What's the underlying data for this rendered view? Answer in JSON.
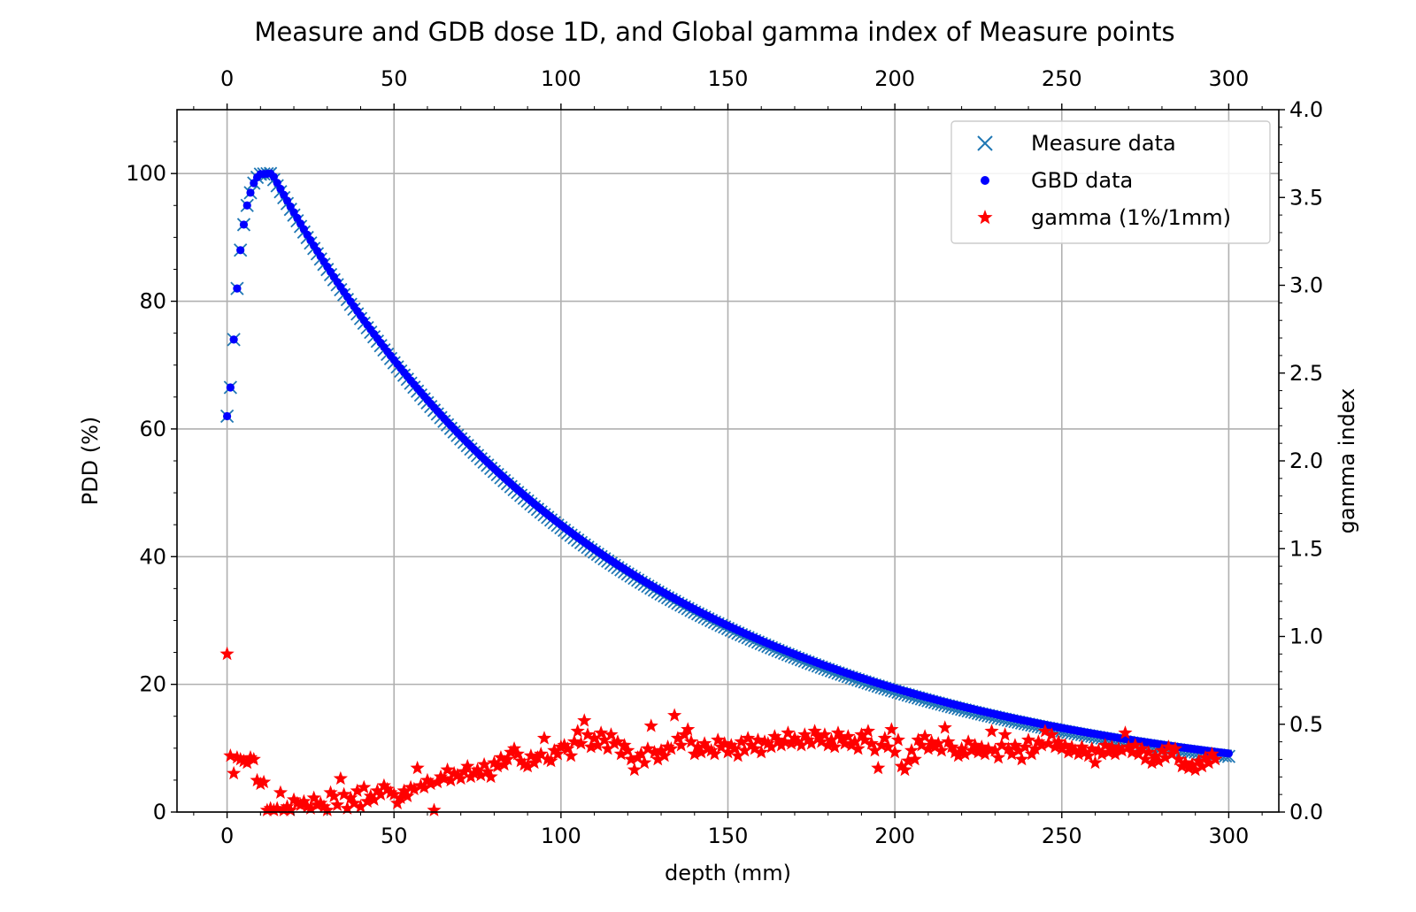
{
  "chart_data": {
    "type": "scatter",
    "title": "Measure and GDB dose 1D, and Global gamma index of Measure points",
    "xlabel": "depth (mm)",
    "ylabel": "PDD (%)",
    "y2label": "gamma index",
    "xlim": [
      -15,
      315
    ],
    "ylim": [
      0,
      110
    ],
    "y2lim": [
      0,
      4.0
    ],
    "xticks": [
      "0",
      "50",
      "100",
      "150",
      "200",
      "250",
      "300"
    ],
    "yticks": [
      "0",
      "20",
      "40",
      "60",
      "80",
      "100"
    ],
    "y2ticks": [
      "0.0",
      "0.5",
      "1.0",
      "1.5",
      "2.0",
      "2.5",
      "3.0",
      "3.5",
      "4.0"
    ],
    "grid": true,
    "legend_position": "top-right",
    "colors": {
      "measure": "#1f77b4",
      "gbd": "#0000ff",
      "gamma": "#ff0000"
    },
    "pdd_model": {
      "x_step": 1,
      "buildup": [
        [
          0,
          62
        ],
        [
          1,
          66.5
        ],
        [
          2,
          74
        ],
        [
          3,
          82
        ],
        [
          4,
          88
        ],
        [
          5,
          92
        ],
        [
          6,
          95
        ],
        [
          7,
          97
        ],
        [
          8,
          98.5
        ],
        [
          9,
          99.4
        ],
        [
          10,
          99.9
        ],
        [
          13,
          100
        ]
      ],
      "peak_depth": 13,
      "falloff_rate": 0.00965,
      "falloff_curvature": 4e-06,
      "gbd_offset": 0.45
    },
    "series": [
      {
        "name": "Measure data",
        "marker": "x",
        "axis": "left"
      },
      {
        "name": "GBD data",
        "marker": "dot",
        "axis": "left"
      },
      {
        "name": "gamma (1%/1mm)",
        "marker": "star",
        "axis": "right",
        "x_step": 1,
        "values": [
          0.9,
          0.32,
          0.22,
          0.31,
          0.3,
          0.29,
          0.28,
          0.31,
          0.3,
          0.18,
          0.16,
          0.17,
          0.01,
          0.02,
          0.01,
          0.02,
          0.11,
          0.01,
          0.03,
          0.01,
          0.07,
          0.05,
          0.04,
          0.06,
          0.03,
          0.02,
          0.08,
          0.04,
          0.05,
          0.03,
          0.01,
          0.11,
          0.09,
          0.04,
          0.19,
          0.1,
          0.02,
          0.08,
          0.05,
          0.12,
          0.03,
          0.14,
          0.06,
          0.09,
          0.07,
          0.12,
          0.1,
          0.15,
          0.13,
          0.11,
          0.1,
          0.05,
          0.08,
          0.12,
          0.09,
          0.14,
          0.13,
          0.25,
          0.15,
          0.14,
          0.18,
          0.16,
          0.01,
          0.17,
          0.2,
          0.19,
          0.24,
          0.18,
          0.22,
          0.21,
          0.19,
          0.23,
          0.26,
          0.2,
          0.22,
          0.24,
          0.21,
          0.27,
          0.23,
          0.2,
          0.28,
          0.26,
          0.31,
          0.27,
          0.3,
          0.34,
          0.36,
          0.33,
          0.29,
          0.27,
          0.26,
          0.32,
          0.28,
          0.31,
          0.33,
          0.42,
          0.3,
          0.29,
          0.35,
          0.33,
          0.37,
          0.38,
          0.36,
          0.32,
          0.4,
          0.46,
          0.39,
          0.52,
          0.44,
          0.37,
          0.42,
          0.38,
          0.45,
          0.41,
          0.36,
          0.44,
          0.39,
          0.4,
          0.33,
          0.38,
          0.35,
          0.3,
          0.24,
          0.31,
          0.33,
          0.28,
          0.36,
          0.49,
          0.34,
          0.3,
          0.35,
          0.32,
          0.37,
          0.36,
          0.55,
          0.42,
          0.38,
          0.44,
          0.47,
          0.4,
          0.33,
          0.37,
          0.34,
          0.39,
          0.36,
          0.35,
          0.33,
          0.41,
          0.37,
          0.39,
          0.34,
          0.38,
          0.36,
          0.32,
          0.4,
          0.35,
          0.42,
          0.38,
          0.36,
          0.41,
          0.34,
          0.4,
          0.39,
          0.37,
          0.43,
          0.41,
          0.38,
          0.4,
          0.45,
          0.39,
          0.42,
          0.4,
          0.38,
          0.44,
          0.41,
          0.39,
          0.46,
          0.43,
          0.4,
          0.44,
          0.38,
          0.41,
          0.37,
          0.45,
          0.42,
          0.39,
          0.43,
          0.38,
          0.4,
          0.36,
          0.44,
          0.41,
          0.46,
          0.39,
          0.35,
          0.25,
          0.38,
          0.42,
          0.37,
          0.47,
          0.34,
          0.41,
          0.26,
          0.24,
          0.29,
          0.35,
          0.3,
          0.41,
          0.38,
          0.43,
          0.36,
          0.4,
          0.37,
          0.39,
          0.35,
          0.48,
          0.4,
          0.37,
          0.34,
          0.32,
          0.36,
          0.33,
          0.4,
          0.35,
          0.38,
          0.34,
          0.37,
          0.33,
          0.36,
          0.46,
          0.35,
          0.31,
          0.38,
          0.44,
          0.36,
          0.33,
          0.38,
          0.35,
          0.3,
          0.37,
          0.41,
          0.33,
          0.36,
          0.4,
          0.38,
          0.46,
          0.39,
          0.44,
          0.37,
          0.4,
          0.36,
          0.38,
          0.34,
          0.37,
          0.35,
          0.33,
          0.37,
          0.34,
          0.32,
          0.36,
          0.28,
          0.35,
          0.33,
          0.38,
          0.34,
          0.37,
          0.33,
          0.36,
          0.35,
          0.45,
          0.37,
          0.34,
          0.38,
          0.33,
          0.36,
          0.3,
          0.34,
          0.28,
          0.32,
          0.29,
          0.35,
          0.31,
          0.37,
          0.33,
          0.36,
          0.3,
          0.26,
          0.28,
          0.25,
          0.27,
          0.24,
          0.29,
          0.26,
          0.31,
          0.28,
          0.33,
          0.3
        ]
      }
    ]
  }
}
